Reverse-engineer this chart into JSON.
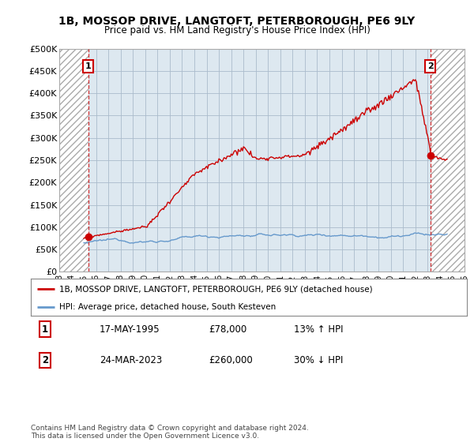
{
  "title": "1B, MOSSOP DRIVE, LANGTOFT, PETERBOROUGH, PE6 9LY",
  "subtitle": "Price paid vs. HM Land Registry's House Price Index (HPI)",
  "legend_line1": "1B, MOSSOP DRIVE, LANGTOFT, PETERBOROUGH, PE6 9LY (detached house)",
  "legend_line2": "HPI: Average price, detached house, South Kesteven",
  "point1_label": "1",
  "point1_date": "17-MAY-1995",
  "point1_price": "£78,000",
  "point1_hpi": "13% ↑ HPI",
  "point1_year": 1995.37,
  "point1_value": 78000,
  "point2_label": "2",
  "point2_date": "24-MAR-2023",
  "point2_price": "£260,000",
  "point2_hpi": "30% ↓ HPI",
  "point2_year": 2023.22,
  "point2_value": 260000,
  "footer": "Contains HM Land Registry data © Crown copyright and database right 2024.\nThis data is licensed under the Open Government Licence v3.0.",
  "red_color": "#cc0000",
  "blue_color": "#6699cc",
  "plot_bg_color": "#dde8f0",
  "bg_color": "#ffffff",
  "grid_color": "#aabbcc",
  "xmin": 1993.0,
  "xmax": 2026.0,
  "ymin": 0,
  "ymax": 500000,
  "hatch_end_year": 1995.37,
  "hatch_start_year2": 2023.22
}
